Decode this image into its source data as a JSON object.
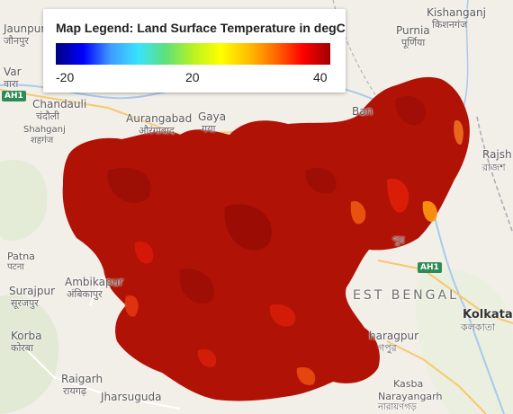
{
  "legend": {
    "title": "Map Legend: Land Surface Temperature in degC",
    "min": "-20",
    "mid": "20",
    "max": "40",
    "colors": [
      "#000080",
      "#0000ff",
      "#3f9cff",
      "#38e3ff",
      "#5ee07a",
      "#b8f222",
      "#ffff00",
      "#ffc000",
      "#ff6a00",
      "#ff0000",
      "#a00000"
    ]
  },
  "overlay_colors": {
    "base": "#b01205",
    "hot": "#e0200a",
    "warm": "#f05a10",
    "dark": "#8a0a04"
  },
  "places": {
    "jaunpur": "Jaunpur",
    "jaunpur_hi": "जौनपुर",
    "varanasi": "Var",
    "varanasi_hi": "वारा",
    "chandauli": "Chandauli",
    "chandauli_hi": "चंदौली",
    "shahganj": "Shahganj",
    "shahganj_hi": "शहगंज",
    "aurangabad": "Aurangabad",
    "aurangabad_hi": "औरंगाबाद",
    "gaya": "Gaya",
    "gaya_hi": "गया",
    "kishanganj": "Kishanganj",
    "kishanganj_hi": "किशनगंज",
    "purnia": "Purnia",
    "purnia_hi": "पूर्णिया",
    "banka": "Ban",
    "rajshahi": "Rajsh",
    "rajshahi_bn": "রাজশ",
    "patna": "Patna",
    "patna_hi": "पटना",
    "surajpur": "Surajpur",
    "surajpur_hi": "सूरजपुर",
    "ambikapur": "Ambikapur",
    "ambikapur_hi": "अंबिकापुर",
    "korba": "Korba",
    "korba_hi": "कोरबा",
    "raigarh": "Raigarh",
    "raigarh_hi": "रायगढ़",
    "jharsuguda": "Jharsuguda",
    "west_bengal": "EST BENGAL",
    "kolkata": "Kolkata",
    "kolkata_bn": "কলকাতা",
    "kharagpur": "haragpur",
    "kharagpur_bn": "গপুর",
    "kasba": "Kasba",
    "narayangarh": "Narayangarh",
    "narayangarh_bn": "নারায়ণগড়",
    "purulia_bn": "পুর"
  },
  "shields": {
    "ah1_left": "AH1",
    "ah1_right": "AH1"
  }
}
